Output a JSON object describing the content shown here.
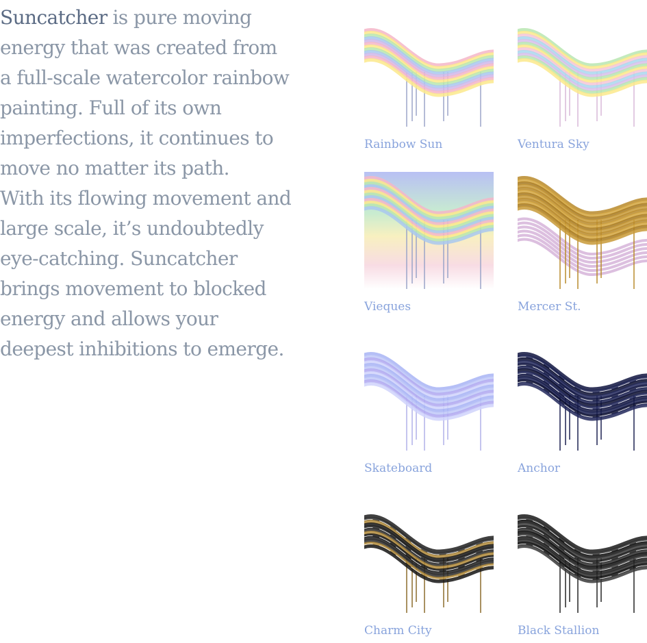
{
  "description": {
    "lead": "Suncatcher",
    "lines": [
      "is pure moving",
      "energy that was created from",
      "a full-scale watercolor rainbow",
      "painting. Full of its own",
      "imperfections, it continues to",
      "move no matter its path.",
      "With its flowing movement and",
      "large scale, it’s undoubtedly",
      "eye-catching. Suncatcher",
      "brings movement to blocked",
      "energy and allows your",
      "deepest inhibitions to emerge."
    ]
  },
  "gallery": {
    "items": [
      "Rainbow Sun",
      "Ventura Sky",
      "Vieques",
      "Mercer St.",
      "Skateboard",
      "Anchor",
      "Charm City",
      "Black Stallion"
    ]
  }
}
